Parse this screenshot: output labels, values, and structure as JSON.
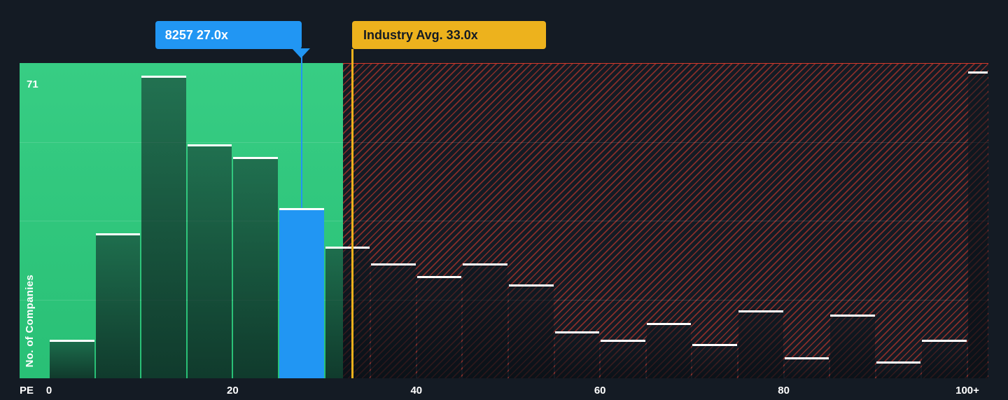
{
  "colors": {
    "background": "#141b24",
    "green_region": "#2bca7c",
    "red_hatch_line": "rgba(229,62,47,0.55)",
    "red_region_edge": "rgba(229,62,47,0.9)",
    "highlight_blue": "#2196f3",
    "industry_yellow": "#edb21d",
    "bar_top_edge": "#ffffff",
    "axis_text": "#ffffff",
    "tooltip_dark_text": "#141b24"
  },
  "chart_data": {
    "type": "bar",
    "y_axis": {
      "label": "No. of Companies",
      "max_tick_label": "71",
      "scale_max": 74
    },
    "x_axis": {
      "label": "PE",
      "range": [
        0,
        100
      ],
      "ticks": [
        {
          "pe": 0,
          "label": "0"
        },
        {
          "pe": 20,
          "label": "20"
        },
        {
          "pe": 40,
          "label": "40"
        },
        {
          "pe": 60,
          "label": "60"
        },
        {
          "pe": 80,
          "label": "80"
        },
        {
          "pe": 100,
          "label": "100+"
        }
      ]
    },
    "grid": "horizontal quarter lines, on",
    "legend": "none",
    "bins": [
      {
        "pe_start": 0,
        "pe_end": 5,
        "count": 9
      },
      {
        "pe_start": 5,
        "pe_end": 10,
        "count": 34
      },
      {
        "pe_start": 10,
        "pe_end": 15,
        "count": 71
      },
      {
        "pe_start": 15,
        "pe_end": 20,
        "count": 55
      },
      {
        "pe_start": 20,
        "pe_end": 25,
        "count": 52
      },
      {
        "pe_start": 25,
        "pe_end": 30,
        "count": 40,
        "highlight": true
      },
      {
        "pe_start": 30,
        "pe_end": 35,
        "count": 31
      },
      {
        "pe_start": 35,
        "pe_end": 40,
        "count": 27
      },
      {
        "pe_start": 40,
        "pe_end": 45,
        "count": 24
      },
      {
        "pe_start": 45,
        "pe_end": 50,
        "count": 27
      },
      {
        "pe_start": 50,
        "pe_end": 55,
        "count": 22
      },
      {
        "pe_start": 55,
        "pe_end": 60,
        "count": 11
      },
      {
        "pe_start": 60,
        "pe_end": 65,
        "count": 9
      },
      {
        "pe_start": 65,
        "pe_end": 70,
        "count": 13
      },
      {
        "pe_start": 70,
        "pe_end": 75,
        "count": 8
      },
      {
        "pe_start": 75,
        "pe_end": 80,
        "count": 16
      },
      {
        "pe_start": 80,
        "pe_end": 85,
        "count": 5
      },
      {
        "pe_start": 85,
        "pe_end": 90,
        "count": 15
      },
      {
        "pe_start": 90,
        "pe_end": 95,
        "count": 4
      },
      {
        "pe_start": 95,
        "pe_end": 100,
        "count": 9
      },
      {
        "pe_start": 100,
        "pe_end": 102,
        "count": 72,
        "overflow": true
      }
    ],
    "company_marker": {
      "label": "8257 27.0x",
      "ticker": "8257",
      "value_text": "27.0x"
    },
    "industry_marker": {
      "label": "Industry Avg. 33.0x",
      "pe": 33,
      "value_text": "33.0x"
    },
    "regions": {
      "green_end_pe": 32
    }
  }
}
